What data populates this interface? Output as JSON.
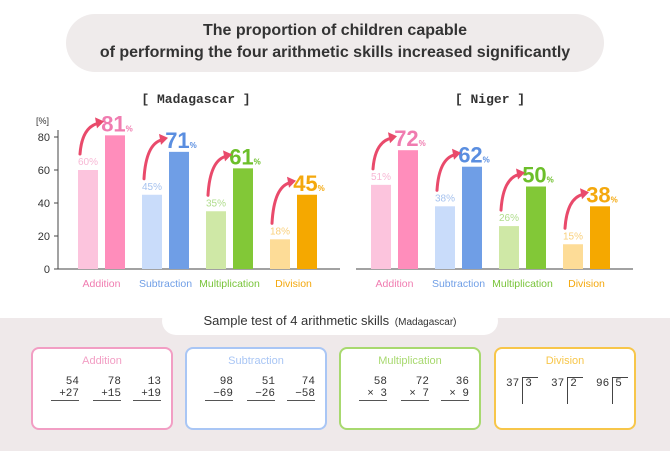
{
  "header": {
    "title_line1": "The proportion of children capable",
    "title_line2": "of performing the four arithmetic skills increased significantly"
  },
  "chart_data": {
    "type": "bar",
    "y_unit": "[%]",
    "ylim": [
      0,
      80
    ],
    "yticks": [
      0,
      20,
      40,
      60,
      80
    ],
    "grid": false,
    "categories": [
      "Addition",
      "Subtraction",
      "Multiplication",
      "Division"
    ],
    "category_colors": [
      "#f07cb0",
      "#6f9ee6",
      "#79c43a",
      "#f4a80d"
    ],
    "panels": [
      {
        "title": "[  Madagascar  ]",
        "series": [
          {
            "values": [
              60,
              45,
              35,
              18
            ]
          },
          {
            "values": [
              81,
              71,
              61,
              45
            ]
          }
        ]
      },
      {
        "title": "[  Niger  ]",
        "series": [
          {
            "values": [
              51,
              38,
              26,
              15
            ]
          },
          {
            "values": [
              72,
              62,
              50,
              38
            ]
          }
        ]
      }
    ],
    "colors": {
      "before": [
        "#fcc4dd",
        "#c9dcfa",
        "#cfe8a6",
        "#fddc97"
      ],
      "after": [
        "#ff8dbb",
        "#6f9ee6",
        "#82c837",
        "#f5a800"
      ],
      "after_text": [
        "#f07cb0",
        "#5a8ee0",
        "#6cbf2a",
        "#f4a80d"
      ],
      "arrow": "#e94a6b"
    }
  },
  "sample": {
    "title": "Sample test of 4 arithmetic skills",
    "subtitle": "(Madagascar)",
    "cards": [
      {
        "title": "Addition",
        "color": "#f29ec4",
        "problems": [
          [
            "54",
            "+27"
          ],
          [
            "78",
            "+15"
          ],
          [
            "13",
            "+19"
          ]
        ]
      },
      {
        "title": "Subtraction",
        "color": "#a9c6f5",
        "problems": [
          [
            "98",
            "−69"
          ],
          [
            "51",
            "−26"
          ],
          [
            "74",
            "−58"
          ]
        ]
      },
      {
        "title": "Multiplication",
        "color": "#a8d96f",
        "problems": [
          [
            "58",
            "× 3"
          ],
          [
            "72",
            "× 7"
          ],
          [
            "36",
            "× 9"
          ]
        ]
      },
      {
        "title": "Division",
        "color": "#f7c64a",
        "problems": [
          [
            "37",
            "3"
          ],
          [
            "37",
            "2"
          ],
          [
            "96",
            "5"
          ]
        ]
      }
    ]
  }
}
